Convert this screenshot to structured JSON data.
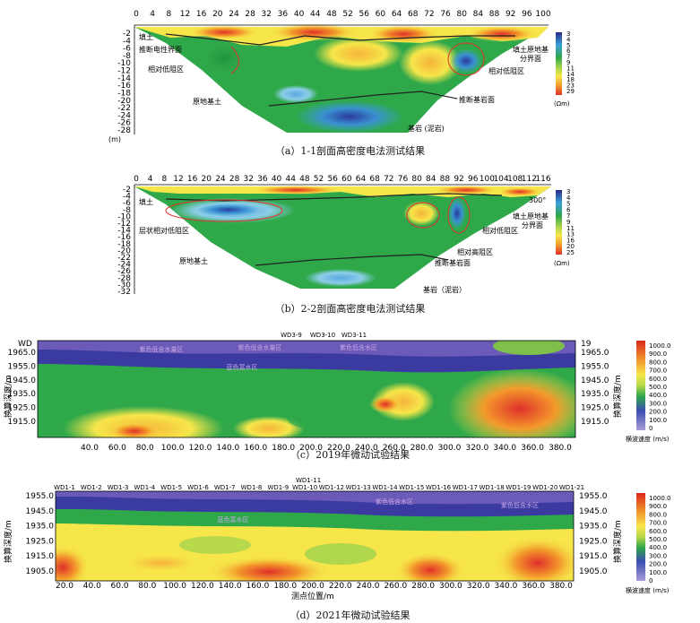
{
  "panel_a": {
    "x_ticks": [
      "0",
      "4",
      "8",
      "12",
      "16",
      "20",
      "24",
      "28",
      "32",
      "36",
      "40",
      "44",
      "48",
      "52",
      "56",
      "60",
      "64",
      "68",
      "72",
      "76",
      "80",
      "84",
      "88",
      "92",
      "96",
      "100"
    ],
    "y_ticks": [
      "-2",
      "-4",
      "-6",
      "-8",
      "-10",
      "-12",
      "-14",
      "-16",
      "-18",
      "-20",
      "-22",
      "-24",
      "-26",
      "-28"
    ],
    "y_unit": "(m)",
    "labels": {
      "fill": "填土",
      "fill_elec": "推断电性界面",
      "low_left": "相对低阻区",
      "orig_soil": "原地基土",
      "bedrock_if": "推断基岩面",
      "bedrock": "基岩 (泥岩)",
      "fill_orig_1": "填土原地基",
      "fill_orig_2": "分界面",
      "low_right": "相对低阻区"
    },
    "legend_values": [
      "3",
      "4",
      "5",
      "6",
      "7",
      "9",
      "11",
      "14",
      "18",
      "23",
      "29"
    ],
    "legend_unit": "(Ωm)",
    "caption": "（a）1-1剖面高密度电法测试结果"
  },
  "panel_b": {
    "x_ticks": [
      "0",
      "4",
      "8",
      "12",
      "16",
      "20",
      "24",
      "28",
      "32",
      "36",
      "40",
      "44",
      "48",
      "52",
      "56",
      "60",
      "64",
      "68",
      "72",
      "76",
      "80",
      "84",
      "88",
      "92",
      "96",
      "100",
      "104",
      "108",
      "112",
      "116"
    ],
    "y_ticks": [
      "-2",
      "-4",
      "-6",
      "-8",
      "-10",
      "-12",
      "-14",
      "-16",
      "-18",
      "-20",
      "-22",
      "-24",
      "-26",
      "-28",
      "-30",
      "-32"
    ],
    "labels": {
      "fill": "填土",
      "layer_low": "层状相对低阻区",
      "orig_soil": "原地基土",
      "high": "相对高阻区",
      "low": "相对低阻区",
      "bedrock_if": "推断基岩面",
      "bedrock": "基岩（泥岩）",
      "fill_orig_1": "填土原地基",
      "fill_orig_2": "分界面",
      "angle": "300°"
    },
    "legend_values": [
      "3",
      "4",
      "5",
      "6",
      "7",
      "9",
      "11",
      "13",
      "16",
      "20",
      "25"
    ],
    "legend_unit": "(Ωm)",
    "caption": "（b）2-2剖面高密度电法测试结果"
  },
  "panel_c": {
    "top_labels": [
      "WD3-9",
      "WD3-10",
      "WD3-11"
    ],
    "left_corner": "WD",
    "right_corner": "19",
    "y_ticks": [
      "1965.0",
      "1955.0",
      "1945.0",
      "1935.0",
      "1925.0",
      "1915.0"
    ],
    "x_ticks": [
      "40.0",
      "60.0",
      "80.0",
      "100.0",
      "120.0",
      "140.0",
      "160.0",
      "180.0",
      "200.0",
      "220.0",
      "240.0",
      "260.0",
      "280.0",
      "300.0",
      "320.0",
      "340.0",
      "360.0",
      "380.0"
    ],
    "y_label": "换算深度/m",
    "zone_labels": [
      "紫色低含水量区",
      "紫色低含水量区",
      "紫色低含水区",
      "蓝色富水区"
    ],
    "legend_values": [
      "1000.0",
      "900.0",
      "800.0",
      "700.0",
      "600.0",
      "500.0",
      "400.0",
      "300.0",
      "200.0",
      "100.0",
      "0"
    ],
    "legend_unit": "横波速度 (m/s)",
    "caption": "（c）2019年微动试验结果"
  },
  "panel_d": {
    "top_labels": [
      "WD1-1",
      "WD1-2",
      "WD1-3",
      "WD1-4",
      "WD1-5",
      "WD1-6",
      "WD1-7",
      "WD1-8",
      "WD1-9",
      "WD1-10",
      "WD1-12",
      "WD1-13",
      "WD1-14",
      "WD1-15",
      "WD1-16",
      "WD1-17",
      "WD1-18",
      "WD1-19",
      "WD1-20",
      "WD1-21"
    ],
    "top_extra": "WD1-11",
    "y_ticks": [
      "1955.0",
      "1945.0",
      "1935.0",
      "1925.0",
      "1915.0",
      "1905.0"
    ],
    "x_ticks": [
      "20.0",
      "40.0",
      "60.0",
      "80.0",
      "100.0",
      "120.0",
      "140.0",
      "160.0",
      "180.0",
      "200.0",
      "220.0",
      "240.0",
      "260.0",
      "280.0",
      "300.0",
      "320.0",
      "340.0",
      "360.0",
      "380.0"
    ],
    "y_label": "换算深度/m",
    "x_label": "测点位置/m",
    "zone_labels": [
      "紫色低含水区",
      "紫色低含水区",
      "蓝色富水区"
    ],
    "legend_values": [
      "1000.0",
      "900.0",
      "800.0",
      "700.0",
      "600.0",
      "500.0",
      "400.0",
      "300.0",
      "200.0",
      "100.0",
      "0"
    ],
    "legend_unit": "横波速度 (m/s)",
    "caption": "（d）2021年微动试验结果"
  }
}
